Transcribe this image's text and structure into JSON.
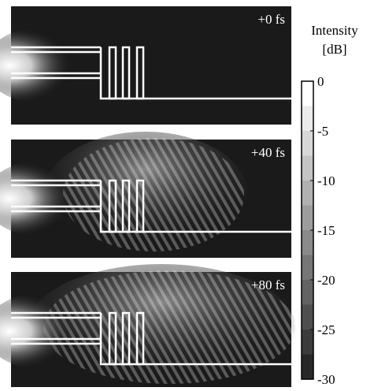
{
  "panels": [
    {
      "label": "+0 fs"
    },
    {
      "label": "+40 fs"
    },
    {
      "label": "+80 fs"
    }
  ],
  "colorbar": {
    "title": "Intensity",
    "unit": "[dB]",
    "lim": [
      -30,
      0
    ],
    "ticks": [
      0,
      -5,
      -10,
      -15,
      -20,
      -25,
      -30
    ]
  }
}
